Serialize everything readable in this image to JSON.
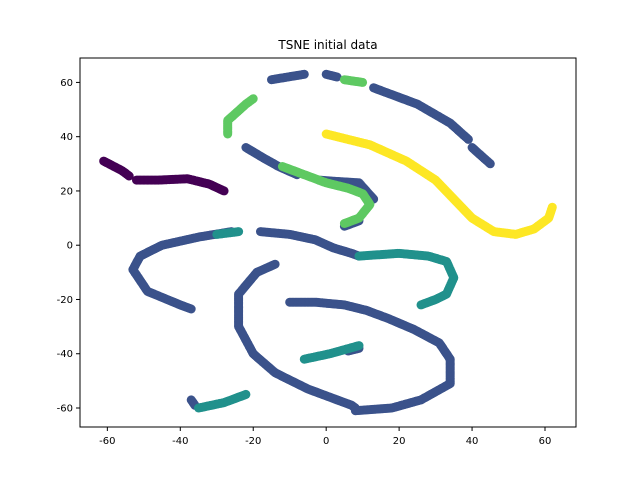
{
  "chart_data": {
    "type": "scatter",
    "title": "TSNE initial data",
    "xlabel": "",
    "ylabel": "",
    "xlim": [
      -67.5,
      68.5
    ],
    "ylim": [
      -67,
      69
    ],
    "xticks": [
      -60,
      -40,
      -20,
      0,
      20,
      40,
      60
    ],
    "yticks": [
      -60,
      -40,
      -20,
      0,
      20,
      40,
      60
    ],
    "grid": false,
    "legend": "none",
    "series": [
      {
        "color": "#440154",
        "curves": [
          [
            [
              -61,
              31
            ],
            [
              -56,
              27.5
            ],
            [
              -54,
              25.5
            ]
          ],
          [
            [
              -52,
              24
            ],
            [
              -46,
              24
            ],
            [
              -38,
              24.5
            ],
            [
              -32,
              22.5
            ],
            [
              -28,
              20
            ]
          ]
        ]
      },
      {
        "color": "#3b528b",
        "curves": [
          [
            [
              -15,
              61
            ],
            [
              -6,
              63
            ]
          ],
          [
            [
              0,
              63
            ],
            [
              3,
              62
            ]
          ],
          [
            [
              13,
              58
            ],
            [
              25,
              52
            ],
            [
              34,
              45
            ],
            [
              39,
              39
            ]
          ],
          [
            [
              40,
              36
            ],
            [
              45,
              30
            ]
          ],
          [
            [
              -22,
              36
            ],
            [
              -17,
              32
            ],
            [
              -13,
              29
            ],
            [
              -8,
              26
            ]
          ],
          [
            [
              -2,
              24
            ],
            [
              3,
              23.5
            ],
            [
              9,
              23
            ],
            [
              13,
              17
            ]
          ],
          [
            [
              5,
              7
            ],
            [
              9,
              9
            ]
          ],
          [
            [
              -18,
              5
            ],
            [
              -10,
              4
            ],
            [
              -3,
              2
            ],
            [
              2,
              -1
            ],
            [
              7,
              -3
            ],
            [
              9,
              -4
            ]
          ],
          [
            [
              -26,
              5
            ],
            [
              -35,
              3
            ],
            [
              -45,
              0
            ],
            [
              -51,
              -4
            ],
            [
              -53,
              -9
            ],
            [
              -49,
              -17
            ],
            [
              -40,
              -22
            ],
            [
              -37,
              -23.5
            ]
          ],
          [
            [
              -14,
              -7
            ],
            [
              -19,
              -10
            ],
            [
              -24,
              -18
            ],
            [
              -24,
              -30
            ],
            [
              -20,
              -40
            ],
            [
              -14,
              -47
            ],
            [
              -5,
              -53
            ],
            [
              3,
              -57
            ],
            [
              7,
              -59
            ],
            [
              8,
              -60
            ]
          ],
          [
            [
              -10,
              -21
            ],
            [
              -3,
              -21
            ],
            [
              5,
              -22
            ],
            [
              11,
              -24
            ],
            [
              17,
              -27
            ],
            [
              24,
              -31
            ],
            [
              31,
              -36
            ],
            [
              34,
              -42
            ],
            [
              34,
              -51
            ],
            [
              26,
              -57
            ],
            [
              18,
              -60
            ],
            [
              8,
              -61
            ]
          ],
          [
            [
              9,
              -38
            ],
            [
              6,
              -39
            ]
          ],
          [
            [
              -37,
              -57
            ],
            [
              -36,
              -59
            ]
          ]
        ]
      },
      {
        "color": "#21918c",
        "curves": [
          [
            [
              -30,
              4
            ],
            [
              -24,
              5
            ]
          ],
          [
            [
              9,
              -4
            ],
            [
              20,
              -3
            ],
            [
              28,
              -4
            ],
            [
              33,
              -6
            ],
            [
              35,
              -12
            ],
            [
              33,
              -18
            ],
            [
              30,
              -20
            ],
            [
              26,
              -22
            ]
          ],
          [
            [
              -6,
              -42
            ],
            [
              1,
              -40
            ],
            [
              9,
              -37
            ]
          ],
          [
            [
              -35,
              -60
            ],
            [
              -28,
              -58
            ],
            [
              -22,
              -55
            ]
          ]
        ]
      },
      {
        "color": "#5ec962",
        "curves": [
          [
            [
              -27,
              41
            ],
            [
              -27,
              46
            ],
            [
              -22,
              52
            ],
            [
              -20,
              54
            ]
          ],
          [
            [
              -12,
              29
            ],
            [
              -6,
              26
            ],
            [
              0,
              23
            ],
            [
              6,
              21
            ],
            [
              10,
              19
            ],
            [
              12,
              15
            ],
            [
              9,
              10
            ],
            [
              5,
              8
            ]
          ],
          [
            [
              5,
              61
            ],
            [
              10,
              60
            ]
          ]
        ]
      },
      {
        "color": "#fde725",
        "curves": [
          [
            [
              0,
              41
            ],
            [
              12,
              37
            ],
            [
              22,
              31
            ],
            [
              30,
              24
            ],
            [
              35,
              17
            ],
            [
              40,
              10
            ],
            [
              46,
              5
            ],
            [
              52,
              4
            ],
            [
              57,
              6
            ],
            [
              61,
              10
            ],
            [
              62,
              14
            ]
          ]
        ]
      }
    ]
  }
}
